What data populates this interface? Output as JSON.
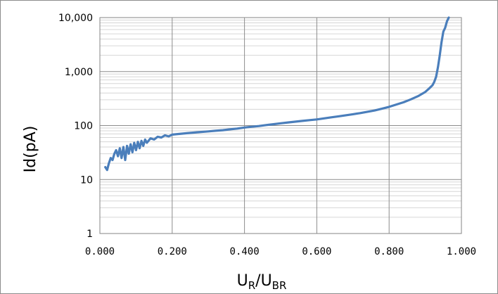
{
  "chart_data": {
    "type": "line",
    "xlabel": {
      "main": "U",
      "sub1": "R",
      "sep": "/U",
      "sub2": "BR"
    },
    "ylabel": "Id(pA)",
    "xlim": [
      0,
      1
    ],
    "ylim": [
      1,
      10000
    ],
    "yscale": "log",
    "grid": true,
    "minor_grid": true,
    "x_tick_values": [
      0,
      0.2,
      0.4,
      0.6,
      0.8,
      1.0
    ],
    "x_tick_labels": [
      "0.000",
      "0.200",
      "0.400",
      "0.600",
      "0.800",
      "1.000"
    ],
    "y_tick_values": [
      1,
      10,
      100,
      1000,
      10000
    ],
    "y_tick_labels": [
      "1",
      "10",
      "100",
      "1,000",
      "10,000"
    ],
    "line_color": "#4a7ebb",
    "series": [
      {
        "x": [
          0.015,
          0.02,
          0.025,
          0.03,
          0.035,
          0.04,
          0.045,
          0.05,
          0.055,
          0.06,
          0.065,
          0.07,
          0.075,
          0.08,
          0.085,
          0.09,
          0.095,
          0.1,
          0.105,
          0.11,
          0.115,
          0.12,
          0.125,
          0.13,
          0.14,
          0.15,
          0.16,
          0.17,
          0.18,
          0.19,
          0.2,
          0.22,
          0.24,
          0.26,
          0.28,
          0.3,
          0.32,
          0.34,
          0.36,
          0.38,
          0.4,
          0.42,
          0.44,
          0.46,
          0.48,
          0.5,
          0.52,
          0.54,
          0.56,
          0.58,
          0.6,
          0.62,
          0.64,
          0.66,
          0.68,
          0.7,
          0.72,
          0.74,
          0.76,
          0.78,
          0.8,
          0.82,
          0.84,
          0.86,
          0.88,
          0.9,
          0.91,
          0.92,
          0.925,
          0.93,
          0.935,
          0.94,
          0.945,
          0.95,
          0.955,
          0.96,
          0.965
        ],
        "y": [
          17,
          15,
          20,
          25,
          23,
          30,
          35,
          27,
          38,
          25,
          40,
          23,
          42,
          30,
          45,
          32,
          48,
          35,
          50,
          38,
          52,
          42,
          55,
          48,
          58,
          55,
          62,
          60,
          66,
          63,
          68,
          70,
          72,
          74,
          76,
          78,
          80,
          82,
          85,
          88,
          92,
          95,
          98,
          102,
          106,
          110,
          114,
          118,
          122,
          126,
          130,
          136,
          142,
          148,
          155,
          162,
          170,
          180,
          190,
          205,
          222,
          245,
          270,
          305,
          350,
          420,
          480,
          560,
          650,
          800,
          1200,
          2000,
          3500,
          5500,
          6500,
          8500,
          10000
        ]
      }
    ]
  }
}
